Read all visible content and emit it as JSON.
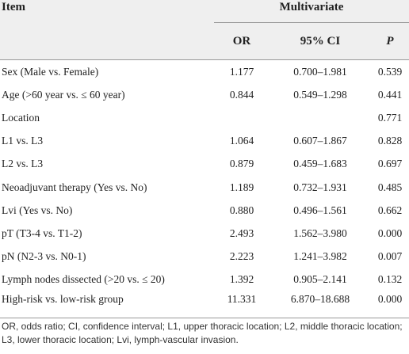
{
  "header": {
    "item": "Item",
    "group": "Multivariate",
    "columns": [
      "OR",
      "95% CI",
      "P"
    ]
  },
  "rows": [
    [
      "Sex (Male vs. Female)",
      "1.177",
      "0.700–1.981",
      "0.539"
    ],
    [
      "Age (>60 year vs. ≤ 60 year)",
      "0.844",
      "0.549–1.298",
      "0.441"
    ],
    [
      "Location",
      null,
      null,
      "0.771"
    ],
    [
      "L1 vs. L3",
      "1.064",
      "0.607–1.867",
      "0.828"
    ],
    [
      "L2 vs. L3",
      "0.879",
      "0.459–1.683",
      "0.697"
    ],
    [
      "Neoadjuvant therapy (Yes vs. No)",
      "1.189",
      "0.732–1.931",
      "0.485"
    ],
    [
      "Lvi (Yes vs. No)",
      "0.880",
      "0.496–1.561",
      "0.662"
    ],
    [
      "pT (T3-4 vs. T1-2)",
      "2.493",
      "1.562–3.980",
      "0.000"
    ],
    [
      "pN (N2-3 vs. N0-1)",
      "2.223",
      "1.241–3.982",
      "0.007"
    ],
    [
      "Lymph nodes dissected (>20 vs. ≤ 20)",
      "1.392",
      "0.905–2.141",
      "0.132"
    ],
    [
      "High-risk vs. low-risk group",
      "11.331",
      "6.870–18.688",
      "0.000"
    ]
  ],
  "footnote": "OR, odds ratio; CI, confidence interval; L1, upper thoracic location; L2, middle thoracic location; L3, lower thoracic location; Lvi, lymph-vascular invasion."
}
